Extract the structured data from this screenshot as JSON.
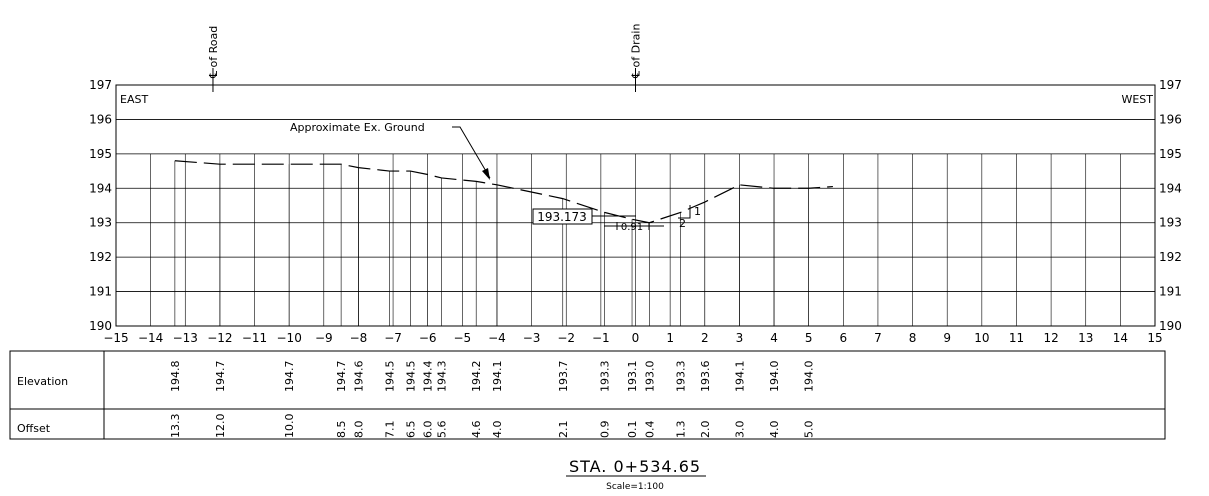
{
  "chart_data": {
    "type": "line",
    "title": "STA. 0+534.65",
    "subtitle": "Scale=1:100",
    "xlim": [
      -15,
      15
    ],
    "ylim": [
      190,
      197
    ],
    "x_ticks": [
      "−15",
      "−14",
      "−13",
      "−12",
      "−11",
      "−10",
      "−9",
      "−8",
      "−7",
      "−6",
      "−5",
      "−4",
      "−3",
      "−2",
      "−1",
      "0",
      "1",
      "2",
      "3",
      "4",
      "5",
      "6",
      "7",
      "8",
      "9",
      "10",
      "11",
      "12",
      "13",
      "14",
      "15"
    ],
    "y_ticks": [
      "190",
      "191",
      "192",
      "193",
      "194",
      "195",
      "196",
      "197"
    ],
    "grid": "vertical stations",
    "left_label": "EAST",
    "right_label": "WEST",
    "centerlines": [
      {
        "label": "℄ of Road",
        "x": -12.2
      },
      {
        "label": "℄ of Drain",
        "x": 0
      }
    ],
    "series": [
      {
        "name": "Approximate Ex. Ground",
        "x": [
          -13.3,
          -12.0,
          -10.0,
          -8.5,
          -8.0,
          -7.1,
          -6.5,
          -6.0,
          -5.6,
          -4.6,
          -4.0,
          -2.1,
          -0.9,
          -0.1,
          0.4,
          1.3,
          2.0,
          3.0,
          4.0,
          5.0,
          5.7
        ],
        "y": [
          194.8,
          194.7,
          194.7,
          194.7,
          194.6,
          194.5,
          194.5,
          194.4,
          194.3,
          194.2,
          194.1,
          193.7,
          193.3,
          193.1,
          193.0,
          193.3,
          193.6,
          194.1,
          194.0,
          194.0,
          194.05
        ]
      }
    ],
    "annotations": {
      "ground_label": "Approximate Ex. Ground",
      "elevation_box": "193.173",
      "width_label": "0.91",
      "slope_rise": "1",
      "slope_run": "2"
    },
    "table": {
      "row_labels": [
        "Elevation",
        "Offset"
      ],
      "columns": [
        {
          "offset": "13.3",
          "elevation": "194.8"
        },
        {
          "offset": "12.0",
          "elevation": "194.7"
        },
        {
          "offset": "10.0",
          "elevation": "194.7"
        },
        {
          "offset": "8.5",
          "elevation": "194.7"
        },
        {
          "offset": "8.0",
          "elevation": "194.6"
        },
        {
          "offset": "7.1",
          "elevation": "194.5"
        },
        {
          "offset": "6.5",
          "elevation": "194.5"
        },
        {
          "offset": "6.0",
          "elevation": "194.4"
        },
        {
          "offset": "5.6",
          "elevation": "194.3"
        },
        {
          "offset": "4.6",
          "elevation": "194.2"
        },
        {
          "offset": "4.0",
          "elevation": "194.1"
        },
        {
          "offset": "2.1",
          "elevation": "193.7"
        },
        {
          "offset": "0.9",
          "elevation": "193.3"
        },
        {
          "offset": "0.1",
          "elevation": "193.1"
        },
        {
          "offset": "0.4",
          "elevation": "193.0"
        },
        {
          "offset": "1.3",
          "elevation": "193.3"
        },
        {
          "offset": "2.0",
          "elevation": "193.6"
        },
        {
          "offset": "3.0",
          "elevation": "194.1"
        },
        {
          "offset": "4.0",
          "elevation": "194.0"
        },
        {
          "offset": "5.0",
          "elevation": "194.0"
        }
      ]
    }
  }
}
